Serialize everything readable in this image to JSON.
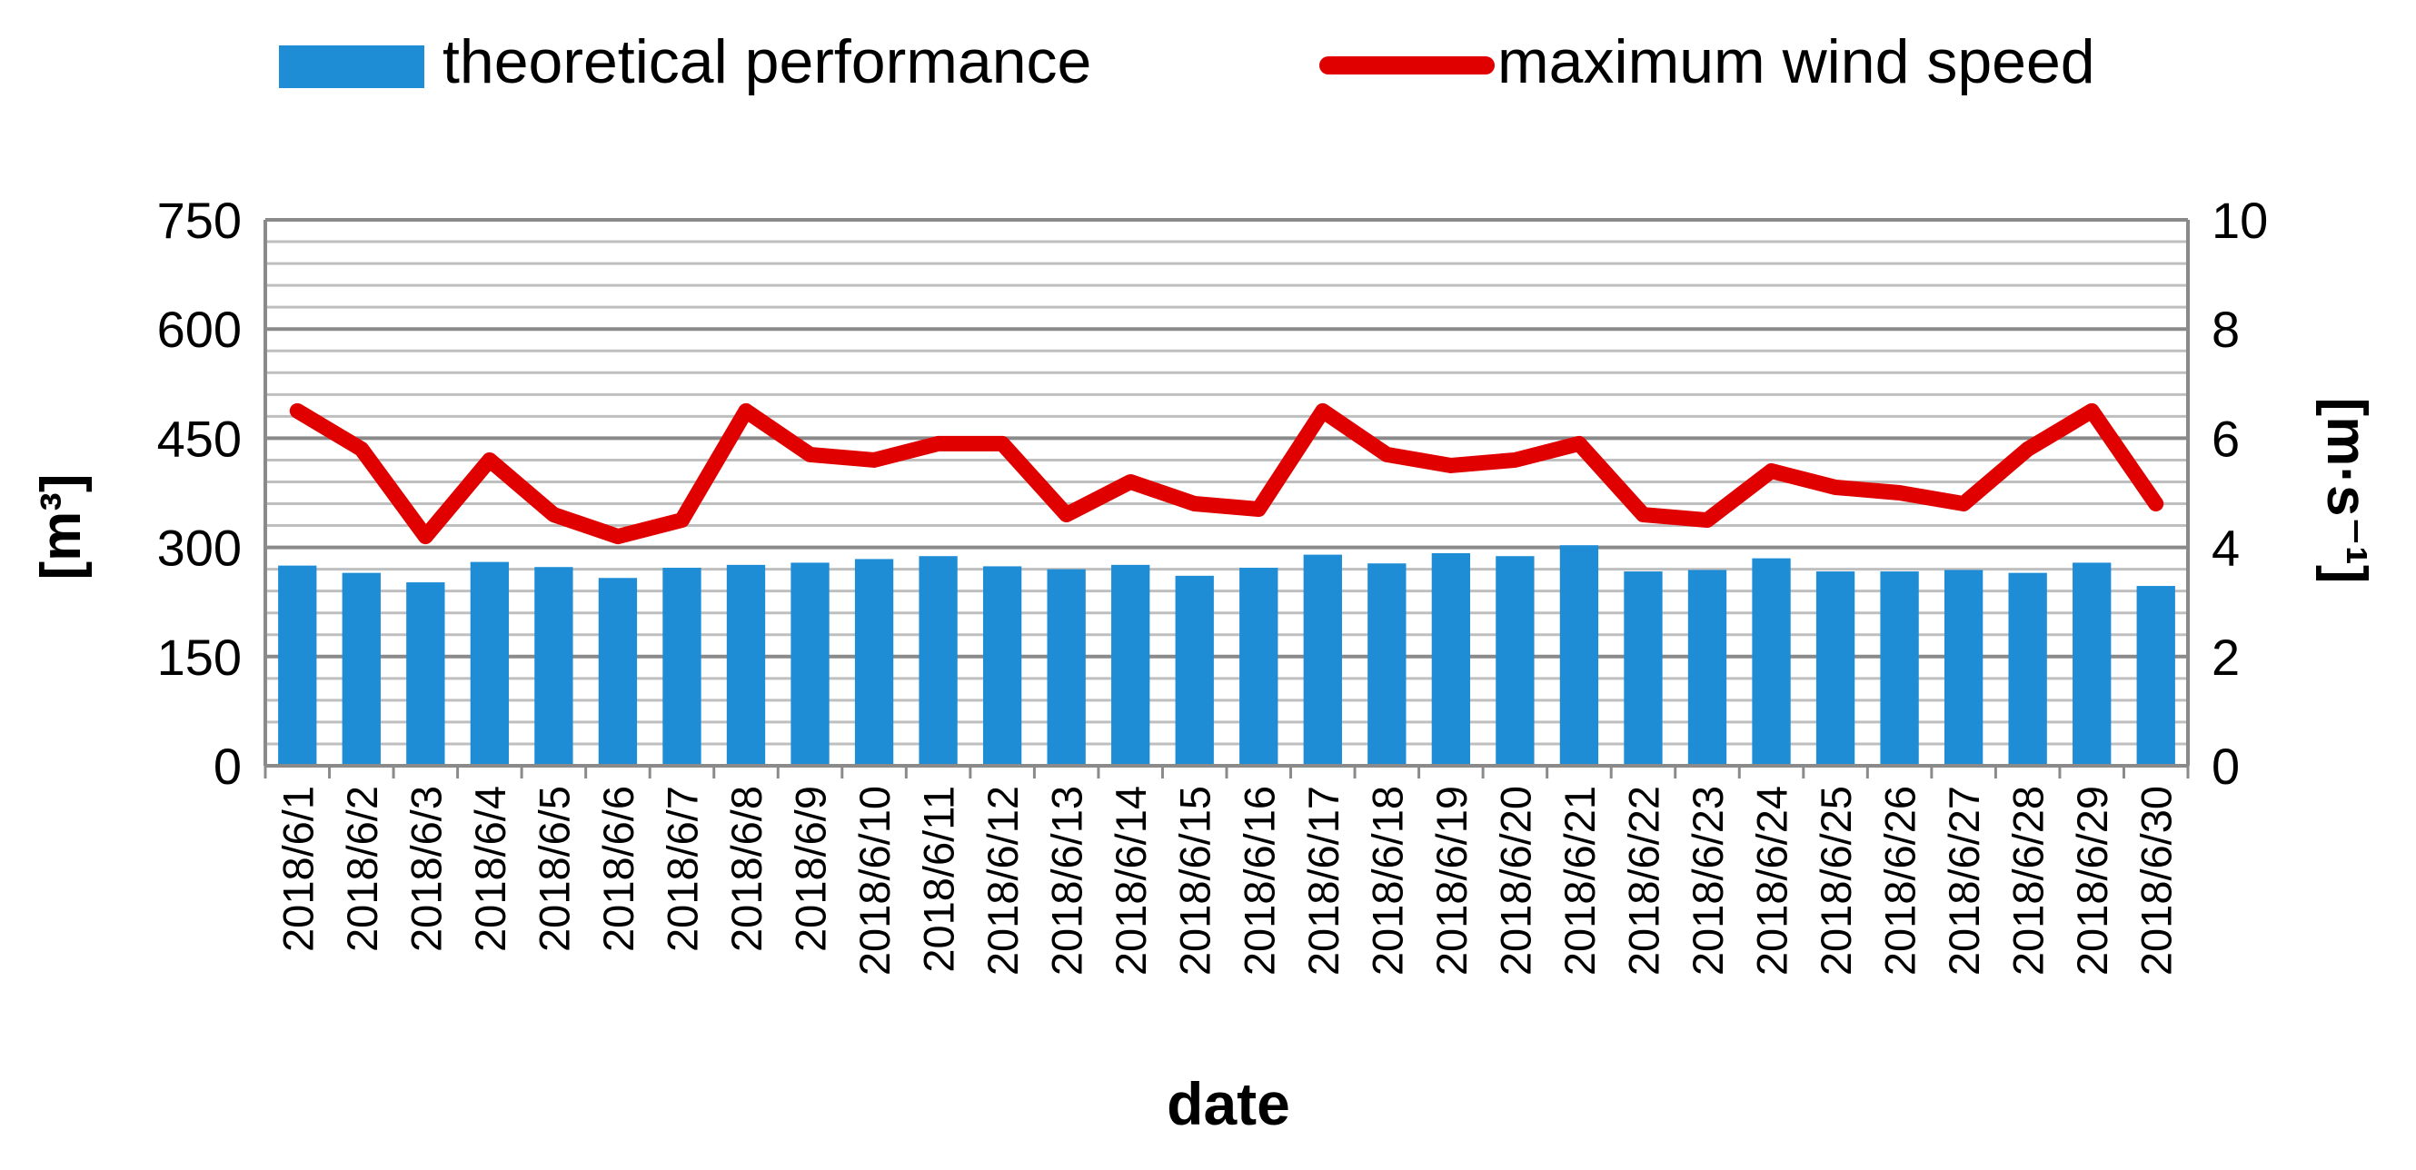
{
  "chart_data": {
    "type": "bar",
    "title": "",
    "xlabel": "date",
    "ylabel_left": "[m³]",
    "ylabel_right": "[m·s⁻¹]",
    "ylim_left": [
      0,
      750
    ],
    "ylim_right": [
      0,
      10
    ],
    "yticks_left": [
      "0",
      "150",
      "300",
      "450",
      "600",
      "750"
    ],
    "yticks_right": [
      "0",
      "2",
      "4",
      "6",
      "8",
      "10"
    ],
    "grid": true,
    "legend_position": "top",
    "categories": [
      "2018/6/1",
      "2018/6/2",
      "2018/6/3",
      "2018/6/4",
      "2018/6/5",
      "2018/6/6",
      "2018/6/7",
      "2018/6/8",
      "2018/6/9",
      "2018/6/10",
      "2018/6/11",
      "2018/6/12",
      "2018/6/13",
      "2018/6/14",
      "2018/6/15",
      "2018/6/16",
      "2018/6/17",
      "2018/6/18",
      "2018/6/19",
      "2018/6/20",
      "2018/6/21",
      "2018/6/22",
      "2018/6/23",
      "2018/6/24",
      "2018/6/25",
      "2018/6/26",
      "2018/6/27",
      "2018/6/28",
      "2018/6/29",
      "2018/6/30"
    ],
    "series": [
      {
        "name": "theoretical performance",
        "type": "bar",
        "axis": "left",
        "color": "#1f8dd6",
        "values": [
          275,
          265,
          252,
          280,
          273,
          258,
          272,
          276,
          279,
          284,
          288,
          274,
          270,
          276,
          261,
          272,
          290,
          278,
          292,
          288,
          303,
          267,
          269,
          285,
          267,
          267,
          269,
          265,
          279,
          247
        ]
      },
      {
        "name": "maximum wind speed",
        "type": "line",
        "axis": "right",
        "color": "#e10000",
        "values": [
          6.5,
          5.8,
          4.2,
          5.6,
          4.6,
          4.2,
          4.5,
          6.5,
          5.7,
          5.6,
          5.9,
          5.9,
          4.6,
          5.2,
          4.8,
          4.7,
          6.5,
          5.7,
          5.5,
          5.6,
          5.9,
          4.6,
          4.5,
          5.4,
          5.1,
          5.0,
          4.8,
          5.8,
          6.5,
          4.8
        ]
      }
    ]
  }
}
